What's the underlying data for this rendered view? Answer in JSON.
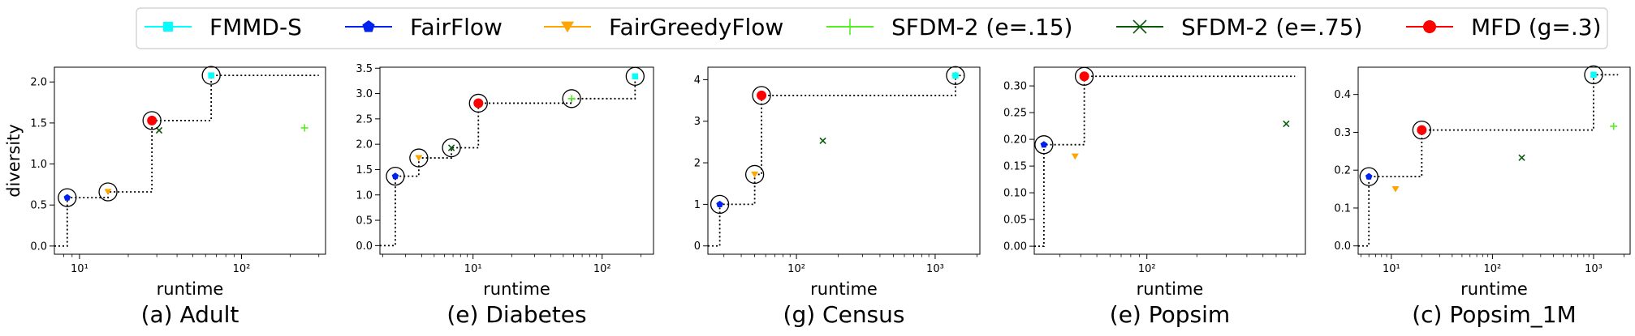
{
  "legend": {
    "items": [
      {
        "label": "FMMD-S",
        "color": "#00ffff",
        "marker": "square"
      },
      {
        "label": "FairFlow",
        "color": "#0022ee",
        "marker": "pentagon"
      },
      {
        "label": "FairGreedyFlow",
        "color": "#ffa500",
        "marker": "triangle-down"
      },
      {
        "label": "SFDM-2 (e=.15)",
        "color": "#55ee22",
        "marker": "plus"
      },
      {
        "label": "SFDM-2 (e=.75)",
        "color": "#0a5a0a",
        "marker": "x"
      },
      {
        "label": "MFD (g=.3)",
        "color": "#ff0000",
        "marker": "circle"
      }
    ]
  },
  "chart_data": [
    {
      "type": "scatter",
      "title": "(a) Adult",
      "xlabel": "runtime",
      "ylabel": "diversity",
      "xscale": "log",
      "xlim": [
        7,
        330
      ],
      "ylim": [
        -0.1,
        2.18
      ],
      "xticks": [
        {
          "value": 10,
          "label": "10¹"
        },
        {
          "value": 100,
          "label": "10²"
        }
      ],
      "yticks": [
        {
          "value": 0,
          "label": "0.0"
        },
        {
          "value": 0.5,
          "label": "0.5"
        },
        {
          "value": 1.0,
          "label": "1.0"
        },
        {
          "value": 1.5,
          "label": "1.5"
        },
        {
          "value": 2.0,
          "label": "2.0"
        }
      ],
      "pareto_end_x": 300,
      "points": [
        {
          "series": "FairFlow",
          "x": 8.4,
          "y": 0.59,
          "circled": true
        },
        {
          "series": "FairGreedyFlow",
          "x": 15,
          "y": 0.66,
          "circled": true
        },
        {
          "series": "MFD (g=.3)",
          "x": 28,
          "y": 1.53,
          "circled": true
        },
        {
          "series": "SFDM-2 (e=.75)",
          "x": 31,
          "y": 1.41,
          "circled": false
        },
        {
          "series": "FMMD-S",
          "x": 65,
          "y": 2.08,
          "circled": true
        },
        {
          "series": "SFDM-2 (e=.15)",
          "x": 245,
          "y": 1.44,
          "circled": false
        }
      ]
    },
    {
      "type": "scatter",
      "title": "(e) Diabetes",
      "xlabel": "runtime",
      "ylabel": "",
      "xscale": "log",
      "xlim": [
        1.9,
        250
      ],
      "ylim": [
        -0.17,
        3.52
      ],
      "xticks": [
        {
          "value": 10,
          "label": "10¹"
        },
        {
          "value": 100,
          "label": "10²"
        }
      ],
      "yticks": [
        {
          "value": 0,
          "label": "0.0"
        },
        {
          "value": 0.5,
          "label": "0.5"
        },
        {
          "value": 1.0,
          "label": "1.0"
        },
        {
          "value": 1.5,
          "label": "1.5"
        },
        {
          "value": 2.0,
          "label": "2.0"
        },
        {
          "value": 2.5,
          "label": "2.5"
        },
        {
          "value": 3.0,
          "label": "3.0"
        },
        {
          "value": 3.5,
          "label": "3.5"
        }
      ],
      "pareto_end_x": 190,
      "points": [
        {
          "series": "FairFlow",
          "x": 2.5,
          "y": 1.37,
          "circled": true
        },
        {
          "series": "FairGreedyFlow",
          "x": 3.8,
          "y": 1.73,
          "circled": true
        },
        {
          "series": "SFDM-2 (e=.75)",
          "x": 6.8,
          "y": 1.93,
          "circled": true
        },
        {
          "series": "MFD (g=.3)",
          "x": 11,
          "y": 2.81,
          "circled": true
        },
        {
          "series": "SFDM-2 (e=.15)",
          "x": 58,
          "y": 2.9,
          "circled": true
        },
        {
          "series": "FMMD-S",
          "x": 180,
          "y": 3.34,
          "circled": true
        }
      ]
    },
    {
      "type": "scatter",
      "title": "(g) Census",
      "xlabel": "runtime",
      "ylabel": "",
      "xscale": "log",
      "xlim": [
        23,
        2100
      ],
      "ylim": [
        -0.2,
        4.3
      ],
      "xticks": [
        {
          "value": 100,
          "label": "10²"
        },
        {
          "value": 1000,
          "label": "10³"
        }
      ],
      "yticks": [
        {
          "value": 0,
          "label": "0"
        },
        {
          "value": 1,
          "label": "1"
        },
        {
          "value": 2,
          "label": "2"
        },
        {
          "value": 3,
          "label": "3"
        },
        {
          "value": 4,
          "label": "4"
        }
      ],
      "pareto_end_x": 1600,
      "points": [
        {
          "series": "FairFlow",
          "x": 28,
          "y": 1.0,
          "circled": true
        },
        {
          "series": "FairGreedyFlow",
          "x": 50,
          "y": 1.72,
          "circled": true
        },
        {
          "series": "MFD (g=.3)",
          "x": 56,
          "y": 3.62,
          "circled": true
        },
        {
          "series": "SFDM-2 (e=.75)",
          "x": 155,
          "y": 2.53,
          "circled": false
        },
        {
          "series": "SFDM-2 (e=.15)",
          "x": 1400,
          "y": 4.1,
          "circled": true
        },
        {
          "series": "FMMD-S",
          "x": 1400,
          "y": 4.1,
          "circled": true
        }
      ]
    },
    {
      "type": "scatter",
      "title": "(e) Popsim",
      "xlabel": "runtime",
      "ylabel": "",
      "xscale": "log",
      "xlim": [
        21,
        900
      ],
      "ylim": [
        -0.015,
        0.335
      ],
      "xticks": [
        {
          "value": 100,
          "label": "10²"
        }
      ],
      "yticks": [
        {
          "value": 0,
          "label": "0.00"
        },
        {
          "value": 0.05,
          "label": "0.05"
        },
        {
          "value": 0.1,
          "label": "0.10"
        },
        {
          "value": 0.15,
          "label": "0.15"
        },
        {
          "value": 0.2,
          "label": "0.20"
        },
        {
          "value": 0.25,
          "label": "0.25"
        },
        {
          "value": 0.3,
          "label": "0.30"
        }
      ],
      "pareto_end_x": 780,
      "points": [
        {
          "series": "FairFlow",
          "x": 24,
          "y": 0.19,
          "circled": true
        },
        {
          "series": "FairGreedyFlow",
          "x": 37,
          "y": 0.168,
          "circled": false
        },
        {
          "series": "MFD (g=.3)",
          "x": 42,
          "y": 0.318,
          "circled": true
        },
        {
          "series": "SFDM-2 (e=.75)",
          "x": 690,
          "y": 0.229,
          "circled": false
        }
      ]
    },
    {
      "type": "scatter",
      "title": "(c) Popsim_1M",
      "xlabel": "runtime",
      "ylabel": "",
      "xscale": "log",
      "xlim": [
        4.7,
        2300
      ],
      "ylim": [
        -0.022,
        0.472
      ],
      "xticks": [
        {
          "value": 10,
          "label": "10¹"
        },
        {
          "value": 100,
          "label": "10²"
        },
        {
          "value": 1000,
          "label": "10³"
        }
      ],
      "yticks": [
        {
          "value": 0,
          "label": "0.0"
        },
        {
          "value": 0.1,
          "label": "0.1"
        },
        {
          "value": 0.2,
          "label": "0.2"
        },
        {
          "value": 0.3,
          "label": "0.3"
        },
        {
          "value": 0.4,
          "label": "0.4"
        }
      ],
      "pareto_end_x": 1750,
      "points": [
        {
          "series": "FairFlow",
          "x": 6,
          "y": 0.183,
          "circled": true
        },
        {
          "series": "FairGreedyFlow",
          "x": 11,
          "y": 0.15,
          "circled": false
        },
        {
          "series": "MFD (g=.3)",
          "x": 20,
          "y": 0.306,
          "circled": true
        },
        {
          "series": "SFDM-2 (e=.75)",
          "x": 195,
          "y": 0.233,
          "circled": false
        },
        {
          "series": "FMMD-S",
          "x": 1000,
          "y": 0.452,
          "circled": true
        },
        {
          "series": "SFDM-2 (e=.15)",
          "x": 1580,
          "y": 0.316,
          "circled": false
        }
      ]
    }
  ]
}
